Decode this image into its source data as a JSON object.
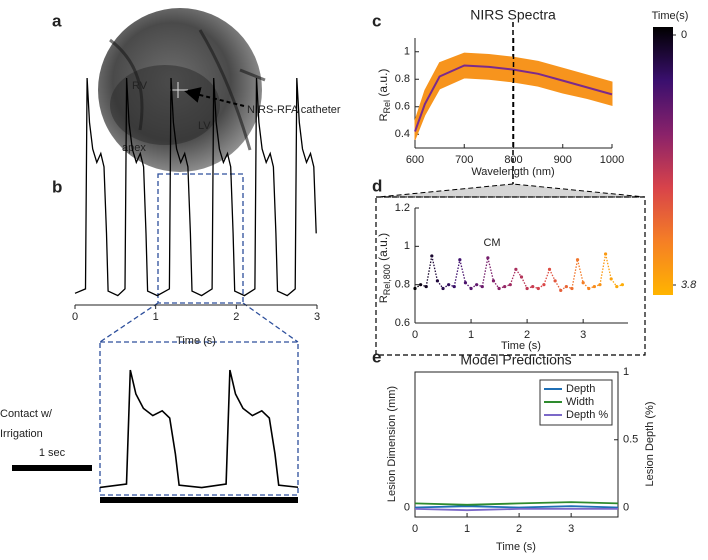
{
  "panel_labels": [
    "a",
    "b",
    "c",
    "d",
    "e"
  ],
  "fluoroscopy": {
    "labels": [
      "RV",
      "LV",
      "apex"
    ],
    "catheter_label": "NIRS-RFA catheter"
  },
  "zoom": {
    "condition": [
      "Contact w/",
      "Irrigation"
    ],
    "scale_bar": "1 sec"
  },
  "chart_data": [
    {
      "type": "line",
      "xlabel": "Time (s)",
      "color": "#000000",
      "x": [
        0,
        0.13,
        0.15,
        0.18,
        0.22,
        0.27,
        0.32,
        0.36,
        0.39,
        0.41,
        0.53,
        0.62,
        0.64,
        0.67,
        0.71,
        0.76,
        0.81,
        0.85,
        0.88,
        0.9,
        1.02,
        1.17,
        1.19,
        1.22,
        1.26,
        1.31,
        1.36,
        1.4,
        1.43,
        1.45,
        1.57,
        1.7,
        1.72,
        1.75,
        1.79,
        1.84,
        1.89,
        1.93,
        1.96,
        1.98,
        2.1,
        2.23,
        2.25,
        2.28,
        2.32,
        2.37,
        2.42,
        2.46,
        2.49,
        2.51,
        2.63,
        2.73,
        2.75,
        2.78,
        2.82,
        2.87,
        2.92,
        2.96,
        2.99
      ],
      "values": [
        0.03,
        0.05,
        1.0,
        0.8,
        0.68,
        0.62,
        0.66,
        0.6,
        0.3,
        0.04,
        0.02,
        0.05,
        1.0,
        0.8,
        0.68,
        0.62,
        0.66,
        0.6,
        0.3,
        0.04,
        0.02,
        0.05,
        1.0,
        0.8,
        0.68,
        0.62,
        0.66,
        0.6,
        0.3,
        0.04,
        0.02,
        0.05,
        1.0,
        0.8,
        0.68,
        0.62,
        0.66,
        0.6,
        0.3,
        0.04,
        0.02,
        0.05,
        1.0,
        0.8,
        0.68,
        0.62,
        0.66,
        0.6,
        0.3,
        0.04,
        0.02,
        0.05,
        1.0,
        0.8,
        0.68,
        0.62,
        0.66,
        0.6,
        0.3
      ],
      "xlim": [
        0,
        3
      ],
      "xticks": [
        0,
        1,
        2,
        3
      ],
      "ylim": [
        0,
        1
      ]
    },
    {
      "type": "band",
      "title": "NIRS Spectra",
      "xlabel": "Wavelength (nm)",
      "ylabel": {
        "text": "R",
        "sub": "Rel",
        "unit": " (a.u.)"
      },
      "x": [
        600,
        620,
        650,
        700,
        750,
        800,
        850,
        900,
        950,
        1000
      ],
      "series": [
        {
          "color": "#f7941d",
          "values": [
            0.5,
            0.72,
            0.92,
            0.99,
            0.98,
            0.96,
            0.93,
            0.88,
            0.83,
            0.78
          ]
        },
        {
          "color": "#f7941d",
          "values": [
            0.36,
            0.54,
            0.73,
            0.81,
            0.8,
            0.78,
            0.75,
            0.7,
            0.66,
            0.61
          ]
        },
        {
          "color": "#7b2a8c",
          "values": [
            0.42,
            0.62,
            0.82,
            0.9,
            0.89,
            0.87,
            0.84,
            0.79,
            0.74,
            0.69
          ]
        }
      ],
      "marker_x": 800,
      "xlim": [
        600,
        1000
      ],
      "xticks": [
        600,
        700,
        800,
        900,
        1000
      ],
      "ylim": [
        0.3,
        1.1
      ],
      "yticks": [
        0.4,
        0.6,
        0.8,
        1
      ]
    },
    {
      "type": "colorscatter",
      "xlabel": "Time (s)",
      "ylabel": {
        "text": "R",
        "sub": "Rel,800",
        "unit": " (a.u.)"
      },
      "annotation": "CM",
      "x": [
        0,
        0.1,
        0.2,
        0.3,
        0.4,
        0.5,
        0.6,
        0.7,
        0.8,
        0.9,
        1.0,
        1.1,
        1.2,
        1.3,
        1.4,
        1.5,
        1.6,
        1.7,
        1.8,
        1.9,
        2.0,
        2.1,
        2.2,
        2.3,
        2.4,
        2.5,
        2.6,
        2.7,
        2.8,
        2.9,
        3.0,
        3.1,
        3.2,
        3.3,
        3.4,
        3.5,
        3.6,
        3.7
      ],
      "values": [
        0.78,
        0.8,
        0.79,
        0.95,
        0.82,
        0.78,
        0.8,
        0.79,
        0.93,
        0.81,
        0.78,
        0.8,
        0.79,
        0.94,
        0.82,
        0.78,
        0.79,
        0.8,
        0.88,
        0.84,
        0.78,
        0.79,
        0.78,
        0.8,
        0.88,
        0.82,
        0.77,
        0.79,
        0.78,
        0.93,
        0.81,
        0.78,
        0.79,
        0.8,
        0.96,
        0.83,
        0.79,
        0.8
      ],
      "xlim": [
        0,
        3.8
      ],
      "xticks": [
        0,
        1,
        2,
        3
      ],
      "ylim": [
        0.6,
        1.2
      ],
      "yticks": [
        0.6,
        0.8,
        1,
        1.2
      ],
      "colorbar": {
        "label": "Time(s)",
        "clim": [
          0,
          3.8
        ],
        "ticks": [
          0,
          3.8
        ],
        "colormap": [
          "#000000",
          "#3a0f6e",
          "#8a226a",
          "#d8434a",
          "#f57f25",
          "#ffb400"
        ]
      }
    },
    {
      "type": "line",
      "title": "Model Predictions",
      "xlabel": "Time (s)",
      "ylabel": "Lesion Dimension (mm)",
      "y2label": "Lesion Depth (%)",
      "x": [
        0,
        1,
        2,
        3,
        3.9
      ],
      "series": [
        {
          "name": "Depth",
          "color": "#1f6fb5",
          "values": [
            0,
            0.01,
            0,
            0.01,
            0
          ]
        },
        {
          "name": "Width",
          "color": "#2e8b2e",
          "values": [
            0.03,
            0.02,
            0.03,
            0.04,
            0.03
          ]
        },
        {
          "name": "Depth %",
          "color": "#7b68c8",
          "axis": "y2",
          "values": [
            -0.01,
            -0.02,
            -0.01,
            -0.01,
            -0.01
          ]
        }
      ],
      "legend": "upper right",
      "xlim": [
        0,
        3.9
      ],
      "xticks": [
        0,
        1,
        2,
        3
      ],
      "ylim": [
        -0.07,
        1
      ],
      "yticks": [
        0
      ],
      "y2lim": [
        -0.07,
        1
      ],
      "y2ticks": [
        0,
        0.5,
        1
      ]
    }
  ]
}
